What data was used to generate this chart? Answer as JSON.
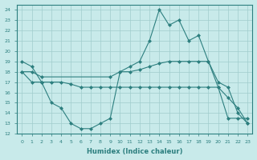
{
  "line1_x": [
    0,
    1,
    2,
    3,
    4,
    5,
    6,
    7,
    8,
    9,
    10,
    11,
    12,
    13,
    14,
    15,
    16,
    17,
    18,
    19,
    20,
    21,
    22,
    23
  ],
  "line1_y": [
    19,
    18.5,
    17,
    15,
    14.5,
    13,
    12.5,
    12.5,
    13,
    13.5,
    18,
    18.5,
    19,
    21,
    24,
    22.5,
    23,
    21,
    21.5,
    19,
    16.5,
    15.5,
    14.5,
    13
  ],
  "line2_x": [
    0,
    1,
    2,
    9,
    10,
    11,
    12,
    13,
    14,
    15,
    16,
    17,
    18,
    19,
    20,
    21,
    22,
    23
  ],
  "line2_y": [
    18,
    18,
    17.5,
    17.5,
    18,
    18,
    18.2,
    18.5,
    18.8,
    19,
    19,
    19,
    19,
    19,
    17,
    16.5,
    14,
    13
  ],
  "line3_x": [
    0,
    1,
    2,
    3,
    4,
    5,
    6,
    7,
    8,
    9,
    10,
    11,
    12,
    13,
    14,
    15,
    16,
    17,
    18,
    19,
    20,
    21,
    22,
    23
  ],
  "line3_y": [
    18,
    17,
    17,
    17,
    17,
    16.8,
    16.5,
    16.5,
    16.5,
    16.5,
    16.5,
    16.5,
    16.5,
    16.5,
    16.5,
    16.5,
    16.5,
    16.5,
    16.5,
    16.5,
    16.5,
    13.5,
    13.5,
    13.5
  ],
  "line_color": "#2d7f7f",
  "bg_color": "#c8eaea",
  "grid_color": "#a0cdcd",
  "xlabel": "Humidex (Indice chaleur)",
  "ylim": [
    12,
    24.5
  ],
  "xlim": [
    -0.5,
    23.5
  ],
  "yticks": [
    12,
    13,
    14,
    15,
    16,
    17,
    18,
    19,
    20,
    21,
    22,
    23,
    24
  ],
  "xticks": [
    0,
    1,
    2,
    3,
    4,
    5,
    6,
    7,
    8,
    9,
    10,
    11,
    12,
    13,
    14,
    15,
    16,
    17,
    18,
    19,
    20,
    21,
    22,
    23
  ],
  "marker": "D",
  "markersize": 2
}
